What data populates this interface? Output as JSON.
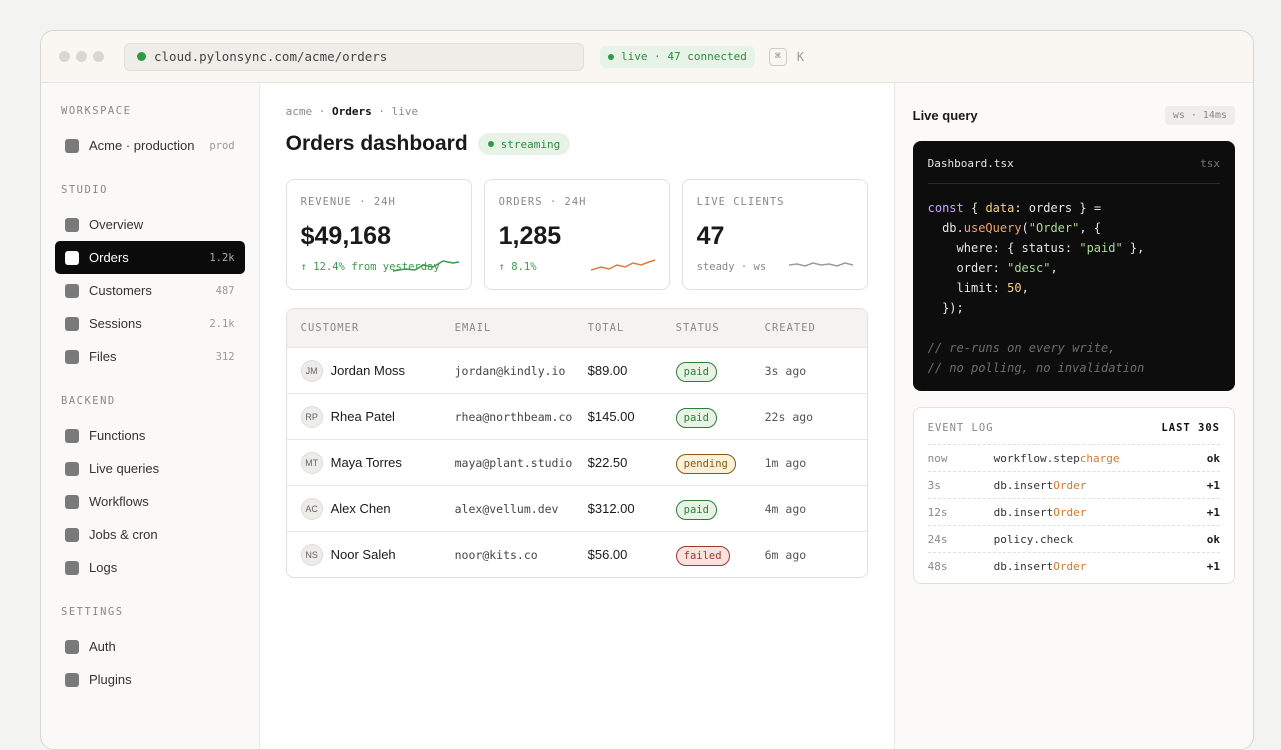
{
  "browser": {
    "url": "cloud.pylonsync.com/acme/orders",
    "status": "live · 47 connected",
    "shortcut": [
      "⌘",
      "K"
    ]
  },
  "sidebar": {
    "sections": [
      {
        "title": "WORKSPACE",
        "items": [
          {
            "label": "Acme · production",
            "badge": "prod"
          }
        ]
      },
      {
        "title": "STUDIO",
        "items": [
          {
            "label": "Overview"
          },
          {
            "label": "Orders",
            "badge": "1.2k",
            "active": true
          },
          {
            "label": "Customers",
            "badge": "487"
          },
          {
            "label": "Sessions",
            "badge": "2.1k"
          },
          {
            "label": "Files",
            "badge": "312"
          }
        ]
      },
      {
        "title": "BACKEND",
        "items": [
          {
            "label": "Functions"
          },
          {
            "label": "Live queries"
          },
          {
            "label": "Workflows"
          },
          {
            "label": "Jobs & cron"
          },
          {
            "label": "Logs"
          }
        ]
      },
      {
        "title": "SETTINGS",
        "items": [
          {
            "label": "Auth"
          },
          {
            "label": "Plugins"
          }
        ]
      }
    ]
  },
  "main": {
    "breadcrumb": [
      "acme",
      "Orders",
      "live"
    ],
    "title": "Orders dashboard",
    "status": "streaming",
    "stats": [
      {
        "label": "REVENUE · 24H",
        "value": "$49,168",
        "note": "↑ 12.4% from yesterday",
        "tone": "up"
      },
      {
        "label": "ORDERS · 24H",
        "value": "1,285",
        "note": "↑ 8.1%",
        "tone": "up"
      },
      {
        "label": "LIVE CLIENTS",
        "value": "47",
        "note": "steady · ws",
        "tone": "flat"
      }
    ],
    "table": {
      "columns": [
        "CUSTOMER",
        "EMAIL",
        "TOTAL",
        "STATUS",
        "CREATED"
      ],
      "rows": [
        {
          "initials": "JM",
          "customer": "Jordan Moss",
          "email": "jordan@kindly.io",
          "total": "$89.00",
          "status": "paid",
          "created": "3s ago"
        },
        {
          "initials": "RP",
          "customer": "Rhea Patel",
          "email": "rhea@northbeam.co",
          "total": "$145.00",
          "status": "paid",
          "created": "22s ago"
        },
        {
          "initials": "MT",
          "customer": "Maya Torres",
          "email": "maya@plant.studio",
          "total": "$22.50",
          "status": "pending",
          "created": "1m ago"
        },
        {
          "initials": "AC",
          "customer": "Alex Chen",
          "email": "alex@vellum.dev",
          "total": "$312.00",
          "status": "paid",
          "created": "4m ago"
        },
        {
          "initials": "NS",
          "customer": "Noor Saleh",
          "email": "noor@kits.co",
          "total": "$56.00",
          "status": "failed",
          "created": "6m ago"
        }
      ]
    }
  },
  "panel": {
    "title": "Live query",
    "latency": "ws · 14ms",
    "code": {
      "file": "Dashboard.tsx",
      "lang": "tsx",
      "lines": [
        [
          {
            "text": "const",
            "kind": "kw"
          },
          {
            "text": " { "
          },
          {
            "text": "data",
            "kind": "prop"
          },
          {
            "text": ": orders } ="
          }
        ],
        [
          {
            "text": "  db."
          },
          {
            "text": "useQuery",
            "kind": "fn"
          },
          {
            "text": "("
          },
          {
            "text": "\"Order\"",
            "kind": "str"
          },
          {
            "text": ", {"
          }
        ],
        [
          {
            "text": "    where: { status: "
          },
          {
            "text": "\"paid\"",
            "kind": "str"
          },
          {
            "text": " },"
          }
        ],
        [
          {
            "text": "    order: "
          },
          {
            "text": "\"desc\"",
            "kind": "str"
          },
          {
            "text": ","
          }
        ],
        [
          {
            "text": "    limit: "
          },
          {
            "text": "50",
            "kind": "num"
          },
          {
            "text": ","
          }
        ],
        [
          {
            "text": "  });"
          }
        ]
      ],
      "comments": [
        "// re-runs on every write,",
        "// no polling, no invalidation"
      ]
    },
    "log": {
      "title": "EVENT LOG",
      "window": "LAST 30S",
      "rows": [
        {
          "time": "now",
          "event": "workflow.step ",
          "target": "charge",
          "result": "ok"
        },
        {
          "time": "3s",
          "event": "db.insert ",
          "target": "Order",
          "result": "+1"
        },
        {
          "time": "12s",
          "event": "db.insert ",
          "target": "Order",
          "result": "+1"
        },
        {
          "time": "24s",
          "event": "policy.check",
          "result": "ok"
        },
        {
          "time": "48s",
          "event": "db.insert ",
          "target": "Order",
          "result": "+1"
        }
      ]
    }
  }
}
